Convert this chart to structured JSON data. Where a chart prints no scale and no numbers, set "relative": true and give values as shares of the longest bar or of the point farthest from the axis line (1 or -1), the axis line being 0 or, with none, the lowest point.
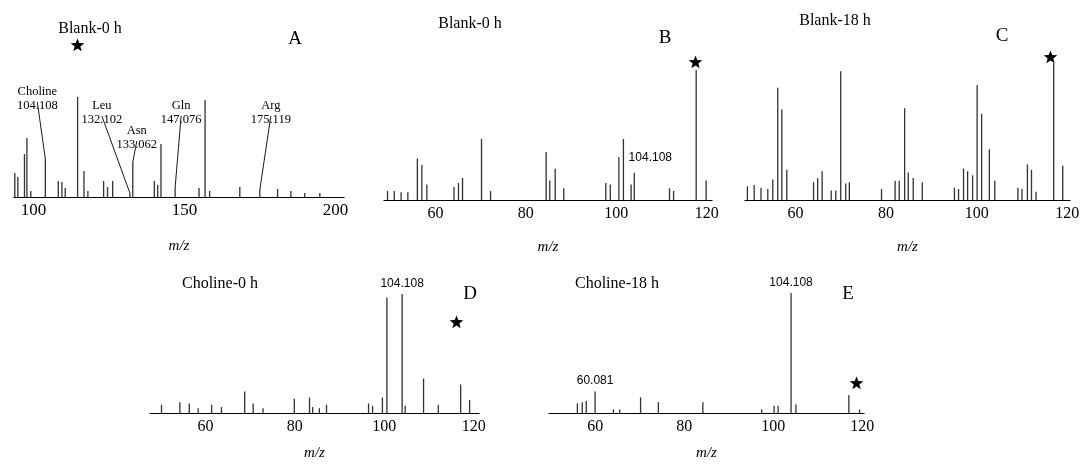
{
  "chart_data": [
    {
      "type": "bar",
      "title": "Blank-0 h",
      "xlabel": "m/z",
      "relative": true,
      "color": "#333333",
      "xlim": [
        93.4,
        203
      ],
      "xticks": [
        100,
        150,
        200
      ],
      "x": [
        94.0,
        95.0,
        97.2,
        98.0,
        99.3,
        104.108,
        108.4,
        109.6,
        110.7,
        114.8,
        116.9,
        118.2,
        123.4,
        124.7,
        126.4,
        132.102,
        133.062,
        140.2,
        141.3,
        142.4,
        147.076,
        155.0,
        157.0,
        158.5,
        168.5,
        175.119,
        181.0,
        185.4,
        190.0,
        195.0
      ],
      "values": [
        0.24,
        0.2,
        0.43,
        0.59,
        0.06,
        0.38,
        0.16,
        0.15,
        0.09,
        1.0,
        0.26,
        0.06,
        0.16,
        0.1,
        0.16,
        0.04,
        0.35,
        0.16,
        0.12,
        0.53,
        0.09,
        0.09,
        0.97,
        0.06,
        0.1,
        0.07,
        0.08,
        0.06,
        0.04,
        0.04
      ],
      "annotations": [
        "A",
        {
          "text": "Choline\n104.108",
          "x": 104.108,
          "y": 0.38
        },
        {
          "text": "Leu\n132.102",
          "x": 132.102,
          "y": 0.04
        },
        {
          "text": "Asn\n133.062",
          "x": 133.062,
          "y": 0.35
        },
        {
          "text": "Gln\n147.076",
          "x": 147.076,
          "y": 0.09
        },
        {
          "text": "Arg\n175.119",
          "x": 175.119,
          "y": 0.07
        }
      ]
    },
    {
      "type": "bar",
      "title": "Blank-0 h",
      "xlabel": "m/z",
      "relative": true,
      "color": "#333333",
      "xlim": [
        48.5,
        121.3
      ],
      "xticks": [
        60,
        80,
        100,
        120
      ],
      "x": [
        49.5,
        51,
        52.5,
        54,
        56.1,
        57.1,
        58.2,
        64.2,
        65.2,
        66.1,
        70.3,
        72.3,
        84.6,
        85.4,
        86.6,
        88.5,
        97.8,
        98.8,
        100.7,
        101.7,
        103.4,
        104.108,
        111.9,
        112.8,
        117.8,
        120
      ],
      "values": [
        0.07,
        0.07,
        0.06,
        0.06,
        0.32,
        0.27,
        0.12,
        0.1,
        0.13,
        0.17,
        0.47,
        0.07,
        0.37,
        0.15,
        0.24,
        0.09,
        0.13,
        0.12,
        0.33,
        0.47,
        0.12,
        0.21,
        0.09,
        0.07,
        1.0,
        0.15
      ],
      "annotations": [
        "B",
        {
          "text": "104.108",
          "x": 104.108,
          "y": 0.21
        }
      ]
    },
    {
      "type": "bar",
      "title": "Blank-18 h",
      "xlabel": "m/z",
      "relative": true,
      "color": "#333333",
      "xlim": [
        48.75,
        120.7
      ],
      "xticks": [
        60,
        80,
        100,
        120
      ],
      "x": [
        49.5,
        51,
        52.5,
        54,
        55.1,
        56.2,
        57.1,
        58.2,
        64.1,
        65,
        66,
        68,
        69,
        70.1,
        71.2,
        72,
        79.1,
        82.1,
        83,
        84.2,
        85,
        86.1,
        88.1,
        95.2,
        96.1,
        97.2,
        98.1,
        99.2,
        100.2,
        101.2,
        102.9,
        104.1,
        109.2,
        110.1,
        111.3,
        112.2,
        113.2,
        117.1,
        119.1
      ],
      "values": [
        0.1,
        0.11,
        0.09,
        0.08,
        0.15,
        0.82,
        0.66,
        0.22,
        0.13,
        0.16,
        0.21,
        0.07,
        0.07,
        0.94,
        0.12,
        0.13,
        0.08,
        0.14,
        0.14,
        0.67,
        0.2,
        0.16,
        0.13,
        0.09,
        0.08,
        0.23,
        0.21,
        0.18,
        0.84,
        0.63,
        0.37,
        0.14,
        0.09,
        0.08,
        0.26,
        0.22,
        0.06,
        1.0,
        0.25
      ],
      "annotations": [
        "C"
      ]
    },
    {
      "type": "bar",
      "title": "Choline-0 h",
      "xlabel": "m/z",
      "relative": true,
      "color": "#333333",
      "xlim": [
        47.5,
        121.3
      ],
      "xticks": [
        60,
        80,
        100,
        120
      ],
      "x": [
        50.3,
        54.4,
        56.5,
        58.5,
        61.5,
        63.7,
        68.9,
        70.8,
        73,
        80,
        83.4,
        84.1,
        85.6,
        87.2,
        96.6,
        97.5,
        99.7,
        100.7,
        104.108,
        104.8,
        108.9,
        112.2,
        117.2,
        119.2
      ],
      "values": [
        0.07,
        0.09,
        0.08,
        0.04,
        0.07,
        0.05,
        0.18,
        0.08,
        0.04,
        0.12,
        0.13,
        0.05,
        0.04,
        0.07,
        0.08,
        0.06,
        0.13,
        0.97,
        1.0,
        0.06,
        0.29,
        0.07,
        0.24,
        0.11
      ],
      "annotations": [
        "D",
        {
          "text": "104.108",
          "x": 104.108,
          "y": 1.0
        }
      ]
    },
    {
      "type": "bar",
      "title": "Choline-18 h",
      "xlabel": "m/z",
      "relative": true,
      "color": "#333333",
      "xlim": [
        49.5,
        120.5
      ],
      "xticks": [
        60,
        80,
        100,
        120
      ],
      "x": [
        56.1,
        57.2,
        58.1,
        60.081,
        64.2,
        65.6,
        70.3,
        74.3,
        84.3,
        97.5,
        100.3,
        101.2,
        104.108,
        105.2,
        117.1,
        119.5
      ],
      "values": [
        0.08,
        0.09,
        0.1,
        0.18,
        0.03,
        0.03,
        0.13,
        0.09,
        0.09,
        0.03,
        0.06,
        0.06,
        1.0,
        0.07,
        0.15,
        0.03
      ],
      "annotations": [
        "E",
        {
          "text": "60.081",
          "x": 60.081,
          "y": 0.18
        },
        {
          "text": "104.108",
          "x": 104.108,
          "y": 1.0
        }
      ]
    }
  ]
}
